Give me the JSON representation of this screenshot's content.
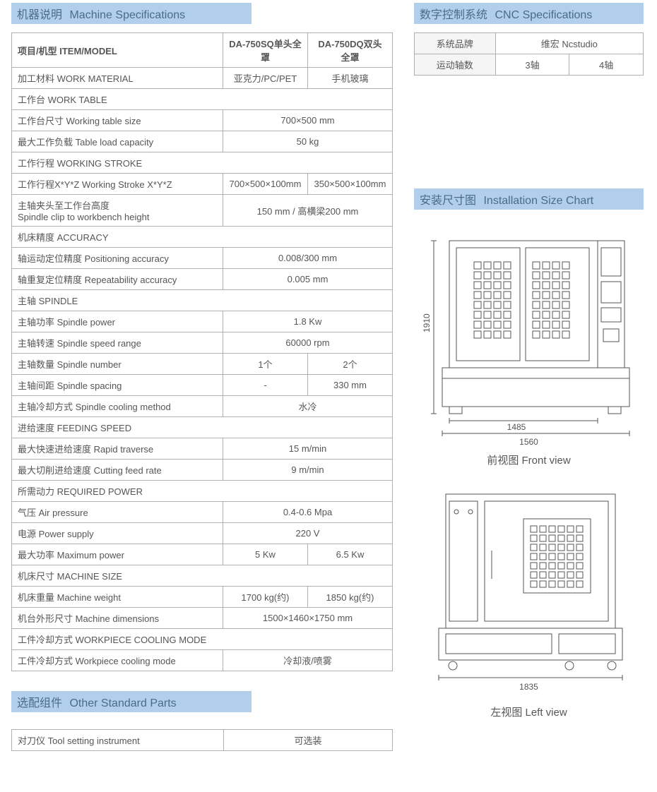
{
  "sections": {
    "machine_spec": {
      "zh": "机器说明",
      "en": "Machine Specifications"
    },
    "cnc_spec": {
      "zh": "数字控制系统",
      "en": "CNC Specifications"
    },
    "install_chart": {
      "zh": "安装尺寸图",
      "en": "Installation Size Chart"
    },
    "other_parts": {
      "zh": "选配组件",
      "en": "Other Standard Parts"
    }
  },
  "spec_table": {
    "header": {
      "item": "项目/机型 ITEM/MODEL",
      "col1": "DA-750SQ单头全罩",
      "col2": "DA-750DQ双头全罩"
    },
    "rows": [
      {
        "type": "split",
        "label": "加工材料 WORK MATERIAL",
        "v1": "亚克力/PC/PET",
        "v2": "手机玻璃"
      },
      {
        "type": "section",
        "label": "工作台 WORK TABLE"
      },
      {
        "type": "merged",
        "label": "工作台尺寸 Working table size",
        "v": "700×500 mm"
      },
      {
        "type": "merged",
        "label": "最大工作负载 Table load capacity",
        "v": "50 kg"
      },
      {
        "type": "section",
        "label": "工作行程 WORKING STROKE"
      },
      {
        "type": "split",
        "label": "工作行程X*Y*Z   Working Stroke X*Y*Z",
        "v1": "700×500×100mm",
        "v2": "350×500×100mm"
      },
      {
        "type": "merged",
        "label": "主轴夹头至工作台高度\nSpindle clip to workbench height",
        "v": "150 mm / 高横梁200 mm"
      },
      {
        "type": "section",
        "label": "机床精度 ACCURACY"
      },
      {
        "type": "merged",
        "label": "轴运动定位精度 Positioning accuracy",
        "v": "0.008/300 mm"
      },
      {
        "type": "merged",
        "label": "轴重复定位精度 Repeatability accuracy",
        "v": "0.005 mm"
      },
      {
        "type": "section",
        "label": "主轴 SPINDLE"
      },
      {
        "type": "merged",
        "label": "主轴功率 Spindle power",
        "v": "1.8 Kw"
      },
      {
        "type": "merged",
        "label": "主轴转速 Spindle speed range",
        "v": "60000 rpm"
      },
      {
        "type": "split",
        "label": "主轴数量 Spindle number",
        "v1": "1个",
        "v2": "2个"
      },
      {
        "type": "split",
        "label": "主轴间距 Spindle spacing",
        "v1": "-",
        "v2": "330 mm"
      },
      {
        "type": "merged",
        "label": "主轴冷却方式 Spindle cooling method",
        "v": "水冷"
      },
      {
        "type": "section",
        "label": "进给速度 FEEDING SPEED"
      },
      {
        "type": "merged",
        "label": "最大快速进给速度 Rapid traverse",
        "v": "15 m/min"
      },
      {
        "type": "merged",
        "label": "最大切削进给速度 Cutting feed rate",
        "v": "9 m/min"
      },
      {
        "type": "section",
        "label": "所需动力 REQUIRED POWER"
      },
      {
        "type": "merged",
        "label": "气压 Air pressure",
        "v": "0.4-0.6 Mpa"
      },
      {
        "type": "merged",
        "label": "电源 Power supply",
        "v": "220 V"
      },
      {
        "type": "split",
        "label": "最大功率 Maximum power",
        "v1": "5 Kw",
        "v2": "6.5 Kw"
      },
      {
        "type": "section",
        "label": "机床尺寸 MACHINE SIZE"
      },
      {
        "type": "split",
        "label": "机床重量 Machine weight",
        "v1": "1700 kg(约)",
        "v2": "1850 kg(约)"
      },
      {
        "type": "merged",
        "label": "机台外形尺寸 Machine dimensions",
        "v": "1500×1460×1750 mm"
      },
      {
        "type": "section",
        "label": "工件冷却方式 WORKPIECE COOLING MODE"
      },
      {
        "type": "merged",
        "label": "工件冷却方式 Workpiece cooling mode",
        "v": "冷却液/喷雾"
      }
    ]
  },
  "cnc_table": {
    "row1": {
      "label": "系统品牌",
      "v": "维宏 Ncstudio"
    },
    "row2": {
      "label": "运动轴数",
      "v1": "3轴",
      "v2": "4轴"
    }
  },
  "drawings": {
    "front": {
      "label": "前视图 Front view",
      "h_dim": "1910",
      "w1_dim": "1485",
      "w2_dim": "1560"
    },
    "left": {
      "label": "左视图 Left view",
      "w_dim": "1835"
    }
  },
  "parts_table": {
    "label": "对刀仪 Tool setting instrument",
    "v": "可选装"
  },
  "colors": {
    "header_bg": "#b1cfea",
    "header_text": "#4a6b8a",
    "border": "#b0b0b0",
    "text": "#565656"
  }
}
